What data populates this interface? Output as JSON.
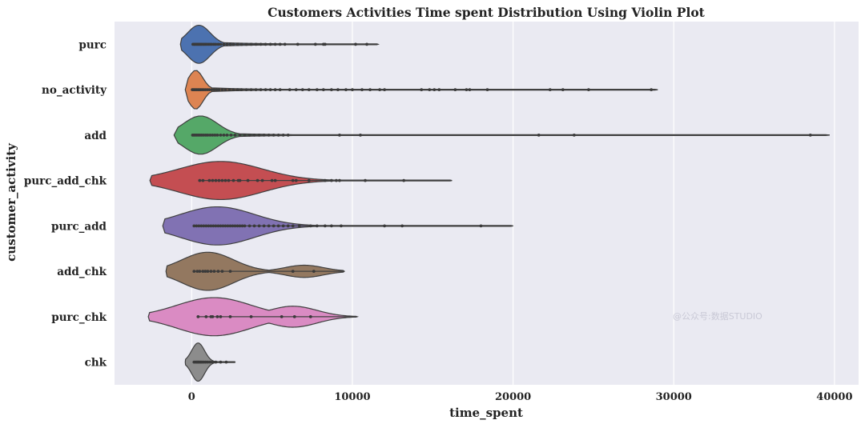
{
  "chart_data": {
    "type": "violin",
    "title": "Customers Activities Time spent Distribution Using Violin Plot",
    "xlabel": "time_spent",
    "ylabel": "customer_activity",
    "xlim": [
      -4800,
      41500
    ],
    "x_ticks": [
      0,
      10000,
      20000,
      30000,
      40000
    ],
    "grid": true,
    "watermark": "@公众号:数据STUDIO",
    "categories": [
      "purc",
      "no_activity",
      "add",
      "purc_add_chk",
      "purc_add",
      "add_chk",
      "purc_chk",
      "chk"
    ],
    "colors": [
      "#4c72b0",
      "#dd8452",
      "#55a868",
      "#c44e52",
      "#8172b3",
      "#937860",
      "#da8bc3",
      "#8c8c8c"
    ],
    "series": [
      {
        "name": "purc",
        "data_min": 0,
        "data_max": 11600,
        "violin_extent": [
          -700,
          11600
        ],
        "density_peak": 450,
        "bandwidth": 700,
        "tail_decay": 3000,
        "points": [
          80,
          150,
          200,
          260,
          320,
          380,
          440,
          500,
          560,
          620,
          700,
          780,
          860,
          950,
          1050,
          1150,
          1250,
          1380,
          1500,
          1650,
          1800,
          2000,
          2200,
          2400,
          2600,
          2850,
          3100,
          3400,
          3700,
          4000,
          4300,
          4600,
          4900,
          5200,
          5500,
          5800,
          6600,
          7700,
          8200,
          8300,
          10200,
          10900
        ]
      },
      {
        "name": "no_activity",
        "data_min": 0,
        "data_max": 29000,
        "violin_extent": [
          -400,
          29000
        ],
        "density_peak": 250,
        "bandwidth": 450,
        "tail_decay": 2600,
        "points": [
          40,
          100,
          170,
          240,
          320,
          400,
          480,
          560,
          650,
          750,
          860,
          980,
          1100,
          1250,
          1400,
          1550,
          1700,
          1900,
          2100,
          2350,
          2600,
          2850,
          3100,
          3400,
          3700,
          4000,
          4300,
          4600,
          4900,
          5200,
          5500,
          6100,
          6500,
          6900,
          7300,
          7800,
          8200,
          8700,
          9100,
          9600,
          10000,
          10600,
          11100,
          11700,
          12000,
          14300,
          14800,
          15100,
          15400,
          16400,
          17100,
          17300,
          18400,
          22300,
          23100,
          24700,
          28600
        ]
      },
      {
        "name": "add",
        "data_min": 0,
        "data_max": 39700,
        "violin_extent": [
          -1100,
          39700
        ],
        "density_peak": 550,
        "bandwidth": 1050,
        "tail_decay": 3300,
        "points": [
          60,
          140,
          230,
          320,
          420,
          520,
          630,
          750,
          880,
          1000,
          1150,
          1300,
          1450,
          1600,
          1800,
          2000,
          2200,
          2450,
          2700,
          3000,
          3300,
          3600,
          3900,
          4200,
          4500,
          4800,
          5100,
          5400,
          5700,
          6000,
          9200,
          10500,
          21600,
          23800,
          38500
        ]
      },
      {
        "name": "purc_add_chk",
        "data_min": 500,
        "data_max": 16200,
        "violin_extent": [
          -2600,
          16200
        ],
        "density_peak": 1800,
        "bandwidth": 2600,
        "tail_decay": 3800,
        "points": [
          500,
          700,
          1100,
          1300,
          1500,
          1700,
          1900,
          2100,
          2300,
          2600,
          2900,
          3000,
          3500,
          4100,
          4400,
          5000,
          5200,
          6300,
          6500,
          7300,
          8300,
          8700,
          9000,
          9200,
          10800,
          13200
        ]
      },
      {
        "name": "purc_add",
        "data_min": 150,
        "data_max": 20000,
        "violin_extent": [
          -1800,
          20000
        ],
        "density_peak": 1600,
        "bandwidth": 2300,
        "tail_decay": 3200,
        "points": [
          150,
          300,
          450,
          600,
          750,
          900,
          1050,
          1200,
          1350,
          1500,
          1650,
          1800,
          1950,
          2100,
          2250,
          2400,
          2550,
          2700,
          2850,
          3000,
          3150,
          3300,
          3600,
          3900,
          4200,
          4500,
          4800,
          5100,
          5400,
          5700,
          6000,
          6300,
          6700,
          7400,
          7800,
          8300,
          8700,
          9300,
          12000,
          13100,
          18000
        ]
      },
      {
        "name": "add_chk",
        "data_min": 150,
        "data_max": 9500,
        "violin_extent": [
          -1600,
          9500
        ],
        "density_peak": 1000,
        "bandwidth": 1600,
        "tail_decay": 2200,
        "secondary_peak": 7000,
        "secondary_weight": 0.32,
        "secondary_bandwidth": 1200,
        "points": [
          150,
          350,
          500,
          700,
          850,
          1000,
          1200,
          1400,
          1650,
          1900,
          2400,
          6300,
          7600
        ]
      },
      {
        "name": "purc_chk",
        "data_min": 400,
        "data_max": 10300,
        "violin_extent": [
          -2700,
          10300
        ],
        "density_peak": 1400,
        "bandwidth": 2300,
        "tail_decay": 3000,
        "secondary_peak": 6300,
        "secondary_weight": 0.55,
        "secondary_bandwidth": 1500,
        "points": [
          400,
          900,
          1200,
          1300,
          1600,
          1800,
          2400,
          3700,
          5600,
          6400,
          7400
        ]
      },
      {
        "name": "chk",
        "data_min": 150,
        "data_max": 2700,
        "violin_extent": [
          -400,
          2700
        ],
        "density_peak": 400,
        "bandwidth": 400,
        "tail_decay": 700,
        "points": [
          150,
          250,
          330,
          400,
          480,
          560,
          640,
          750,
          870,
          1000,
          1150,
          1300,
          1500,
          1800,
          2150
        ]
      }
    ]
  }
}
